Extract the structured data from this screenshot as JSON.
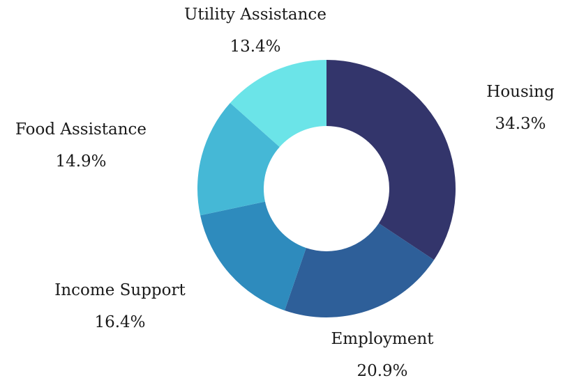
{
  "chart_data": {
    "type": "donut",
    "categories": [
      "Housing",
      "Employment",
      "Income Support",
      "Food Assistance",
      "Utility Assistance"
    ],
    "values": [
      34.3,
      20.9,
      16.4,
      14.9,
      13.4
    ],
    "value_labels": [
      "34.3%",
      "20.9%",
      "16.4%",
      "14.9%",
      "13.4%"
    ],
    "colors": [
      "#33356b",
      "#2e5f99",
      "#2e8bbd",
      "#45b8d6",
      "#6be4e8"
    ]
  }
}
